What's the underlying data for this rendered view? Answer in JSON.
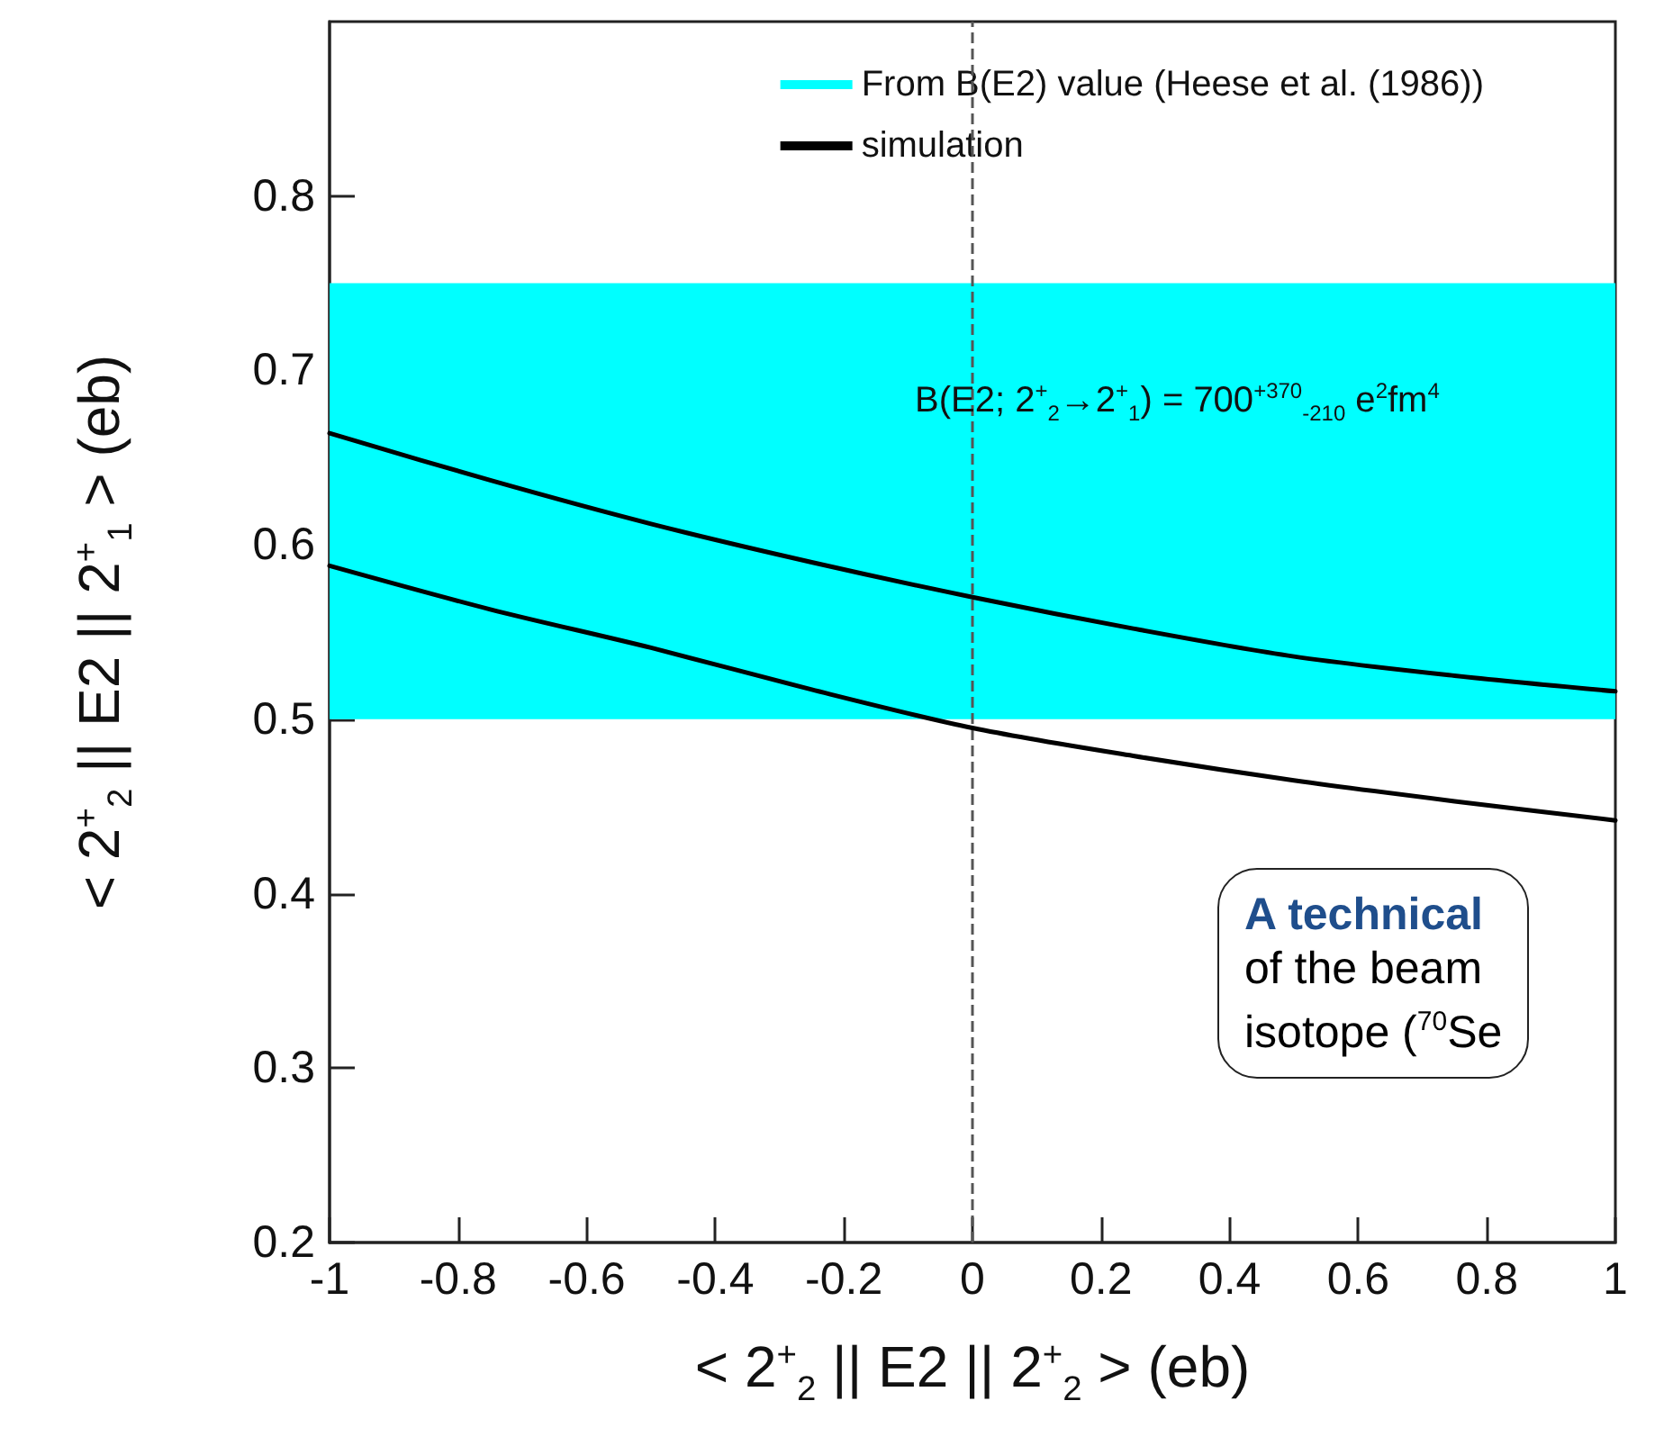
{
  "chart_data": {
    "type": "line",
    "xlabel": "< 2$^{+}$$_{2}$ || E2 || 2$^{+}$$_{2}$ >  (eb)",
    "ylabel": "< 2$^{+}$$_{2}$ || E2 || 2$^{+}$$_{1}$ >  (eb)",
    "xlim": [
      -1,
      1
    ],
    "xticks": [
      -1,
      -0.8,
      -0.6,
      -0.4,
      -0.2,
      0,
      0.2,
      0.4,
      0.6,
      0.8,
      1
    ],
    "ylim": [
      0.2,
      0.9
    ],
    "yticks": [
      0.2,
      0.3,
      0.4,
      0.5,
      0.6,
      0.7,
      0.8
    ],
    "x": [
      -1,
      -0.75,
      -0.5,
      -0.25,
      0,
      0.25,
      0.5,
      0.75,
      1
    ],
    "series": [
      {
        "name": "simulation",
        "color": "#000000",
        "values": [
          0.664,
          0.637,
          0.612,
          0.59,
          0.57,
          0.552,
          0.536,
          0.525,
          0.516
        ]
      },
      {
        "color": "#000000",
        "values": [
          0.588,
          0.563,
          0.541,
          0.517,
          0.495,
          0.479,
          0.465,
          0.453,
          0.442
        ]
      }
    ],
    "bands": [
      {
        "axis": "y",
        "from": 0.5,
        "to": 0.75,
        "label": "From B(E2) value (Heese et al. (1986))",
        "color": "#00ffff"
      }
    ],
    "ref_lines": [
      {
        "axis": "x",
        "value": 0,
        "color": "#555555",
        "line_style": "dashed"
      }
    ],
    "annotations": [
      "B(E2; 2$^{+}$$_{2}$→2$^{+}$$_{1}$) = 700$^{+370}$$_{-210}$ e$^{2}$fm$^{4}$",
      "A technical\nof the beam\nisotope ($^{70}$Se"
    ],
    "legend": "top right",
    "marker": "none",
    "line_style": "solid"
  }
}
